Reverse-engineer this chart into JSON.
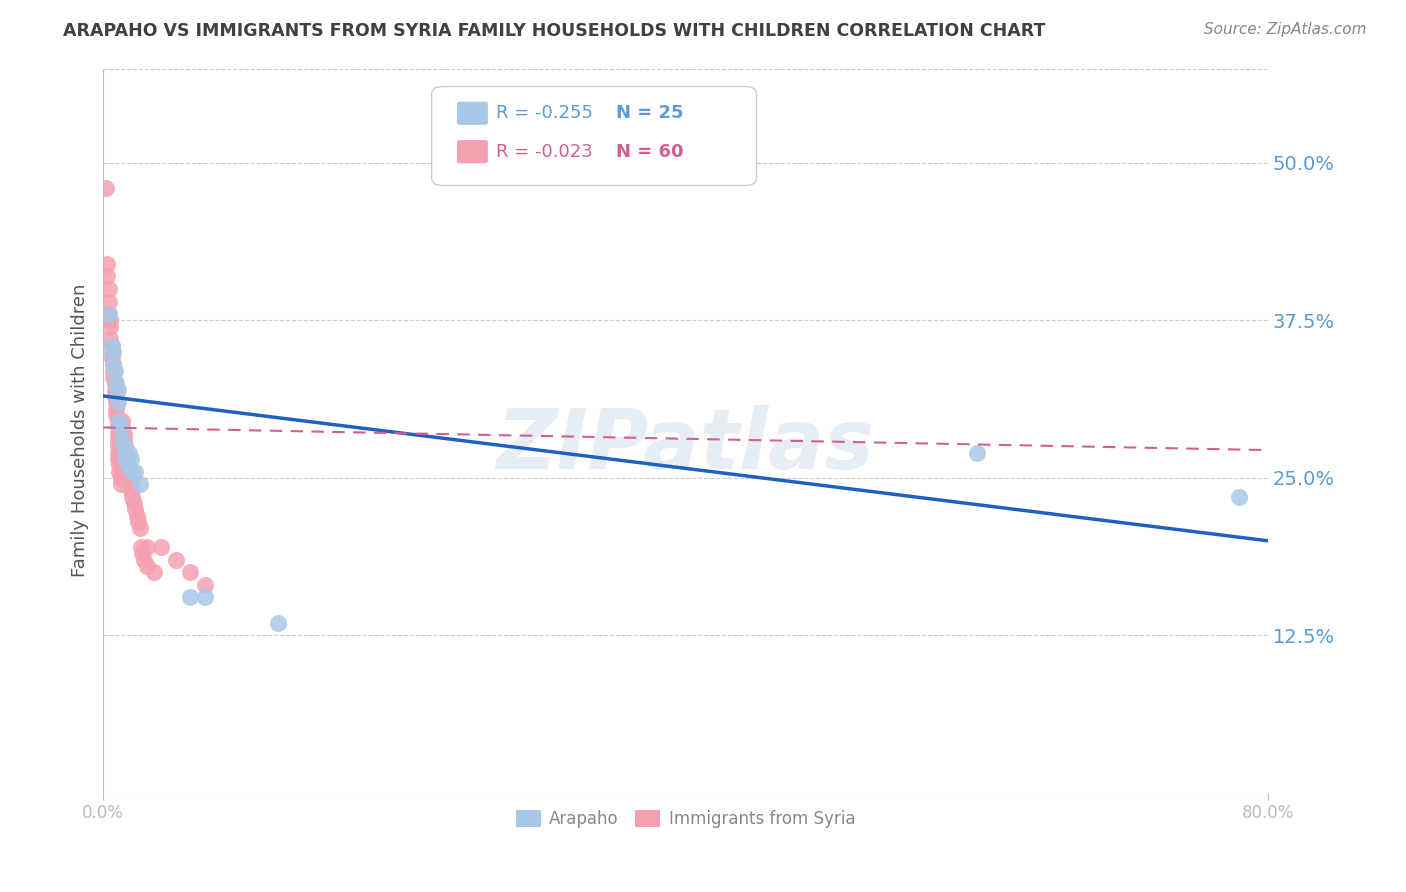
{
  "title": "ARAPAHO VS IMMIGRANTS FROM SYRIA FAMILY HOUSEHOLDS WITH CHILDREN CORRELATION CHART",
  "source": "Source: ZipAtlas.com",
  "ylabel": "Family Households with Children",
  "ytick_labels": [
    "12.5%",
    "25.0%",
    "37.5%",
    "50.0%"
  ],
  "ytick_values": [
    0.125,
    0.25,
    0.375,
    0.5
  ],
  "xlim": [
    0.0,
    0.8
  ],
  "ylim": [
    0.0,
    0.575
  ],
  "arapaho_color": "#a8c8e8",
  "syria_color": "#f4a0b0",
  "arapaho_line_color": "#2060c0",
  "syria_line_color": "#d06090",
  "legend_r_arapaho": "R = -0.255",
  "legend_n_arapaho": "N = 25",
  "legend_r_syria": "R = -0.023",
  "legend_n_syria": "N = 60",
  "watermark": "ZIPatlas",
  "arapaho_points": [
    [
      0.004,
      0.38
    ],
    [
      0.006,
      0.355
    ],
    [
      0.007,
      0.35
    ],
    [
      0.007,
      0.34
    ],
    [
      0.008,
      0.335
    ],
    [
      0.009,
      0.325
    ],
    [
      0.01,
      0.32
    ],
    [
      0.01,
      0.31
    ],
    [
      0.011,
      0.295
    ],
    [
      0.012,
      0.29
    ],
    [
      0.013,
      0.28
    ],
    [
      0.014,
      0.275
    ],
    [
      0.015,
      0.27
    ],
    [
      0.016,
      0.265
    ],
    [
      0.017,
      0.26
    ],
    [
      0.018,
      0.27
    ],
    [
      0.019,
      0.265
    ],
    [
      0.02,
      0.255
    ],
    [
      0.022,
      0.255
    ],
    [
      0.025,
      0.245
    ],
    [
      0.06,
      0.155
    ],
    [
      0.07,
      0.155
    ],
    [
      0.12,
      0.135
    ],
    [
      0.6,
      0.27
    ],
    [
      0.78,
      0.235
    ]
  ],
  "syria_points": [
    [
      0.002,
      0.48
    ],
    [
      0.003,
      0.42
    ],
    [
      0.003,
      0.41
    ],
    [
      0.004,
      0.4
    ],
    [
      0.004,
      0.39
    ],
    [
      0.004,
      0.38
    ],
    [
      0.005,
      0.375
    ],
    [
      0.005,
      0.37
    ],
    [
      0.005,
      0.36
    ],
    [
      0.006,
      0.355
    ],
    [
      0.006,
      0.35
    ],
    [
      0.006,
      0.345
    ],
    [
      0.007,
      0.34
    ],
    [
      0.007,
      0.335
    ],
    [
      0.007,
      0.33
    ],
    [
      0.008,
      0.325
    ],
    [
      0.008,
      0.32
    ],
    [
      0.008,
      0.315
    ],
    [
      0.009,
      0.31
    ],
    [
      0.009,
      0.305
    ],
    [
      0.009,
      0.3
    ],
    [
      0.01,
      0.295
    ],
    [
      0.01,
      0.29
    ],
    [
      0.01,
      0.285
    ],
    [
      0.01,
      0.28
    ],
    [
      0.01,
      0.275
    ],
    [
      0.01,
      0.27
    ],
    [
      0.01,
      0.265
    ],
    [
      0.011,
      0.26
    ],
    [
      0.011,
      0.255
    ],
    [
      0.012,
      0.25
    ],
    [
      0.012,
      0.245
    ],
    [
      0.013,
      0.295
    ],
    [
      0.013,
      0.29
    ],
    [
      0.014,
      0.285
    ],
    [
      0.014,
      0.28
    ],
    [
      0.015,
      0.275
    ],
    [
      0.015,
      0.27
    ],
    [
      0.016,
      0.265
    ],
    [
      0.016,
      0.26
    ],
    [
      0.017,
      0.255
    ],
    [
      0.018,
      0.25
    ],
    [
      0.019,
      0.245
    ],
    [
      0.019,
      0.24
    ],
    [
      0.02,
      0.235
    ],
    [
      0.021,
      0.23
    ],
    [
      0.022,
      0.225
    ],
    [
      0.023,
      0.22
    ],
    [
      0.024,
      0.215
    ],
    [
      0.025,
      0.21
    ],
    [
      0.026,
      0.195
    ],
    [
      0.027,
      0.19
    ],
    [
      0.028,
      0.185
    ],
    [
      0.03,
      0.195
    ],
    [
      0.03,
      0.18
    ],
    [
      0.035,
      0.175
    ],
    [
      0.04,
      0.195
    ],
    [
      0.05,
      0.185
    ],
    [
      0.06,
      0.175
    ],
    [
      0.07,
      0.165
    ]
  ],
  "arapaho_trendline": [
    [
      0.0,
      0.315
    ],
    [
      0.8,
      0.2
    ]
  ],
  "syria_trendline": [
    [
      0.0,
      0.29
    ],
    [
      0.8,
      0.272
    ]
  ],
  "grid_color": "#cccccc",
  "ytick_right_color": "#5b9bd5",
  "background_color": "#ffffff",
  "title_color": "#404040",
  "source_color": "#888888",
  "ylabel_color": "#555555",
  "xtick_color": "#aaaaaa"
}
